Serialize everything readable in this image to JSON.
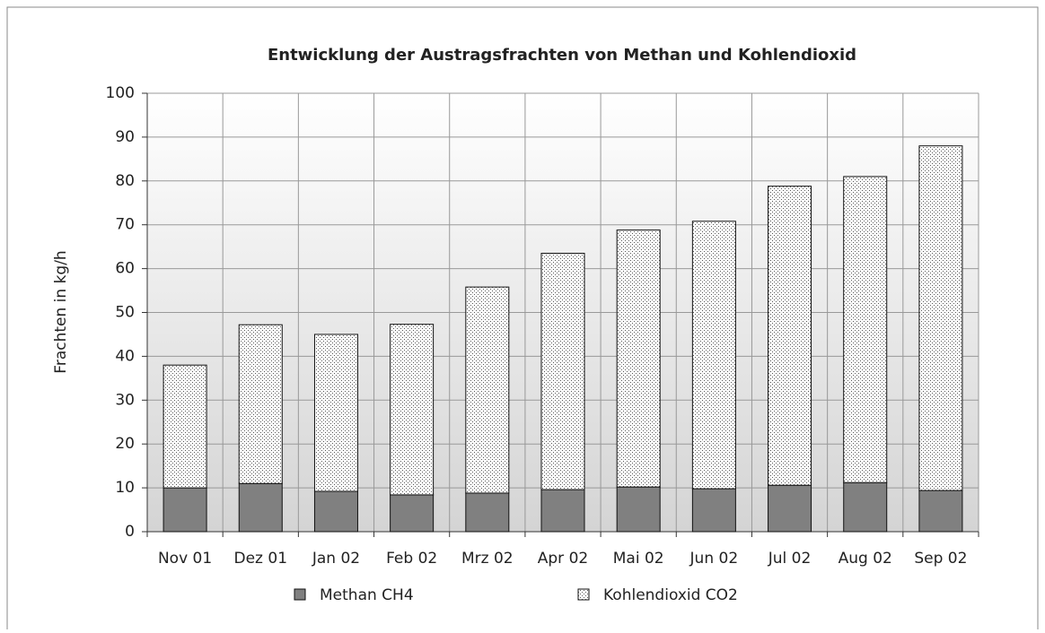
{
  "chart_data": {
    "type": "stacked_bar",
    "title": "Entwicklung der Austragsfrachten von Methan und Kohlendioxid",
    "y_label": "Frachten in kg/h",
    "categories": [
      "Nov 01",
      "Dez 01",
      "Jan 02",
      "Feb 02",
      "Mrz 02",
      "Apr 02",
      "Mai 02",
      "Jun 02",
      "Jul 02",
      "Aug 02",
      "Sep 02"
    ],
    "series": [
      {
        "name": "Methan CH4",
        "color": "#808080",
        "values": [
          10,
          11,
          9.2,
          8.4,
          8.8,
          9.6,
          10.2,
          9.8,
          10.6,
          11.2,
          9.4
        ]
      },
      {
        "name": "Kohlendioxid CO2",
        "color": "#ffffff",
        "pattern": "dots",
        "values": [
          28,
          36.2,
          35.8,
          38.9,
          47,
          53.9,
          58.6,
          61,
          68.2,
          69.8,
          78.6
        ]
      }
    ],
    "ylim": [
      0,
      100
    ],
    "yticks": [
      0,
      10,
      20,
      30,
      40,
      50,
      60,
      70,
      80,
      90,
      100
    ],
    "grid": true,
    "legend": "bottom"
  }
}
